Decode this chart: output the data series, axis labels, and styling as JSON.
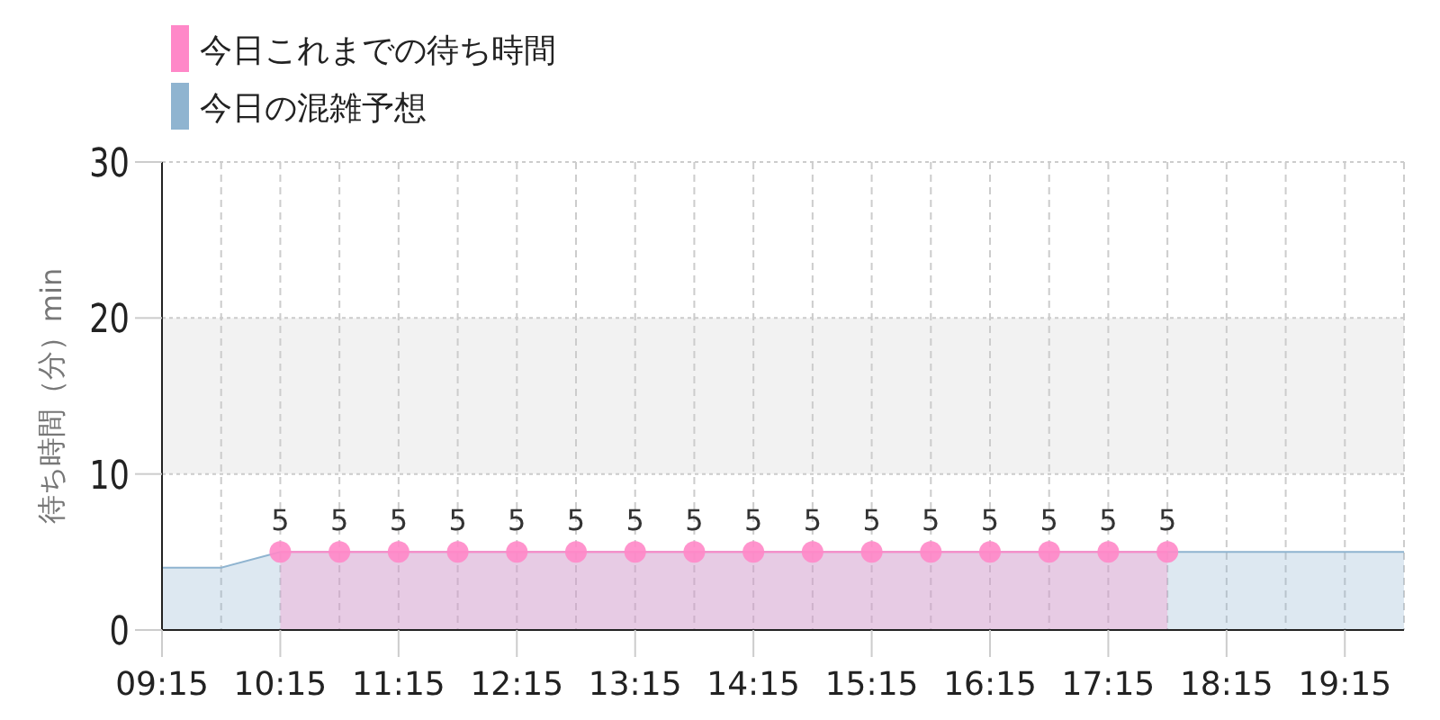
{
  "chart_data": {
    "type": "area",
    "ylabel": "待ち時間（分）min",
    "xlim": [
      9.25,
      19.75
    ],
    "xticks": [
      {
        "value": 9.25,
        "label": "09:15"
      },
      {
        "value": 9.75,
        "label": null
      },
      {
        "value": 10.25,
        "label": "10:15"
      },
      {
        "value": 10.75,
        "label": null
      },
      {
        "value": 11.25,
        "label": "11:15"
      },
      {
        "value": 11.75,
        "label": null
      },
      {
        "value": 12.25,
        "label": "12:15"
      },
      {
        "value": 12.75,
        "label": null
      },
      {
        "value": 13.25,
        "label": "13:15"
      },
      {
        "value": 13.75,
        "label": null
      },
      {
        "value": 14.25,
        "label": "14:15"
      },
      {
        "value": 14.75,
        "label": null
      },
      {
        "value": 15.25,
        "label": "15:15"
      },
      {
        "value": 15.75,
        "label": null
      },
      {
        "value": 16.25,
        "label": "16:15"
      },
      {
        "value": 16.75,
        "label": null
      },
      {
        "value": 17.25,
        "label": "17:15"
      },
      {
        "value": 17.75,
        "label": null
      },
      {
        "value": 18.25,
        "label": "18:15"
      },
      {
        "value": 18.75,
        "label": null
      },
      {
        "value": 19.25,
        "label": "19:15"
      },
      {
        "value": 19.75,
        "label": null
      }
    ],
    "ylim": [
      0,
      30
    ],
    "yticks": [
      0,
      10,
      20,
      30
    ],
    "grid": true,
    "legend": "top left",
    "bands": [
      {
        "axis": "y",
        "from": 10,
        "to": 20,
        "color": "#f2f2f2"
      }
    ],
    "series": [
      {
        "name": "今日の混雑予想",
        "color": "#8fb4d0",
        "marker": "none",
        "x": [
          9.25,
          9.75,
          10.25,
          10.75,
          11.25,
          11.75,
          12.25,
          12.75,
          13.25,
          13.75,
          14.25,
          14.75,
          15.25,
          15.75,
          16.25,
          16.75,
          17.25,
          17.75,
          18.25,
          18.75,
          19.25,
          19.75
        ],
        "values": [
          4,
          4,
          5,
          5,
          5,
          5,
          5,
          5,
          5,
          5,
          5,
          5,
          5,
          5,
          5,
          5,
          5,
          5,
          5,
          5,
          5,
          5
        ]
      },
      {
        "name": "今日これまでの待ち時間",
        "color": "#ff88c8",
        "marker": "circle",
        "data_labels": true,
        "x": [
          10.25,
          10.75,
          11.25,
          11.75,
          12.25,
          12.75,
          13.25,
          13.75,
          14.25,
          14.75,
          15.25,
          15.75,
          16.25,
          16.75,
          17.25,
          17.75
        ],
        "values": [
          5,
          5,
          5,
          5,
          5,
          5,
          5,
          5,
          5,
          5,
          5,
          5,
          5,
          5,
          5,
          5
        ]
      }
    ]
  }
}
